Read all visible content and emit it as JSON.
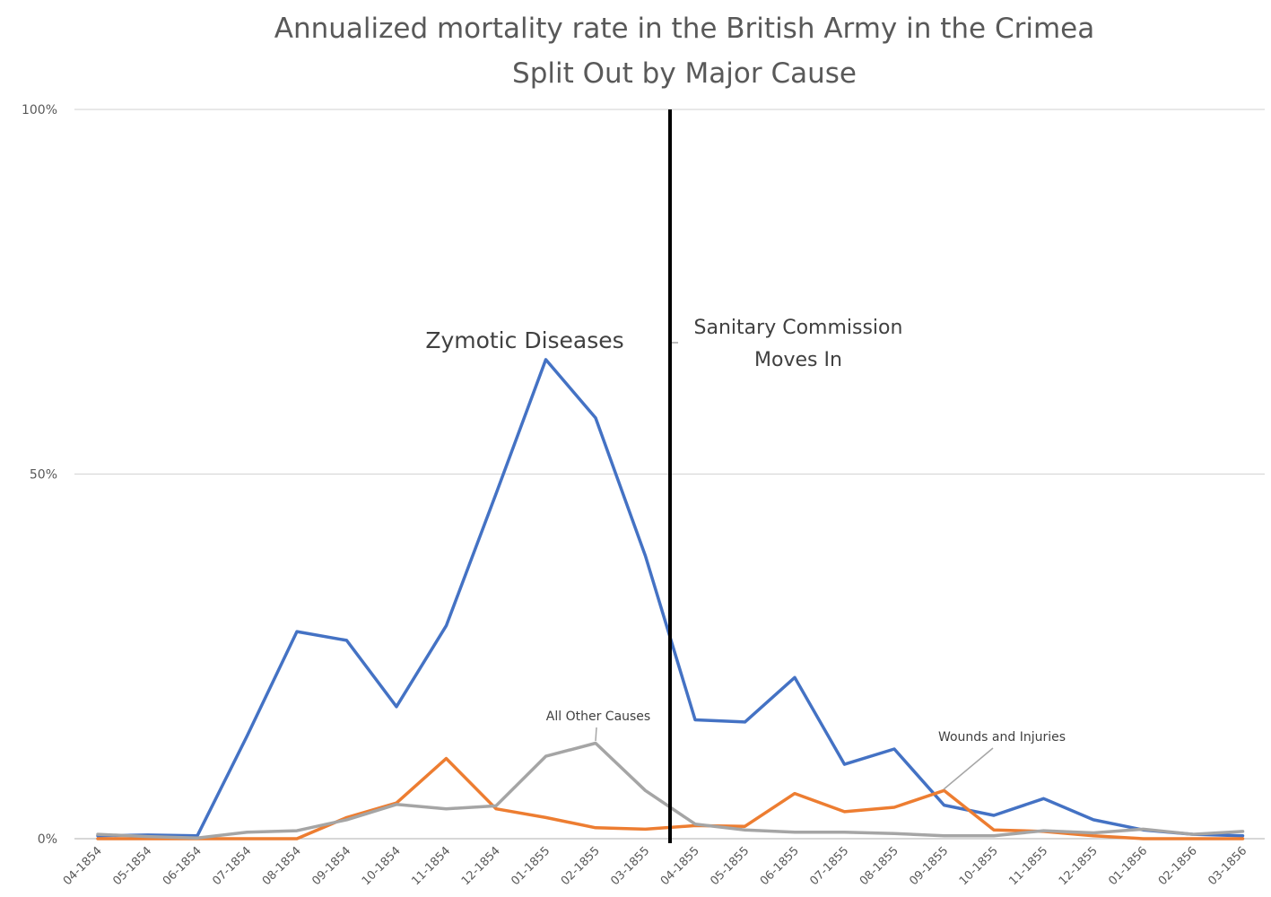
{
  "chart_data": {
    "type": "line",
    "title": "Annualized mortality rate in the British Army in the Crimea",
    "subtitle": "Split Out by Major Cause",
    "categories": [
      "04-1854",
      "05-1854",
      "06-1854",
      "07-1854",
      "08-1854",
      "09-1854",
      "10-1854",
      "11-1854",
      "12-1854",
      "01-1855",
      "02-1855",
      "03-1855",
      "04-1855",
      "05-1855",
      "06-1855",
      "07-1855",
      "08-1855",
      "09-1855",
      "10-1855",
      "11-1855",
      "12-1855",
      "01-1856",
      "02-1856",
      "03-1856"
    ],
    "yticks": [
      "0%",
      "50%",
      "100%"
    ],
    "ylim": [
      0,
      1
    ],
    "grid": true,
    "series": [
      {
        "key": "zymotic",
        "color": "#4472C4",
        "values": [
          0.004,
          0.005,
          0.004,
          0.141,
          0.284,
          0.272,
          0.181,
          0.292,
          0.473,
          0.657,
          0.577,
          0.388,
          0.163,
          0.16,
          0.221,
          0.102,
          0.123,
          0.046,
          0.032,
          0.055,
          0.026,
          0.012,
          0.006,
          0.004
        ]
      },
      {
        "key": "wounds",
        "color": "#ED7D31",
        "values": [
          0.0,
          0.0,
          0.0,
          0.0,
          0.0,
          0.029,
          0.049,
          0.11,
          0.041,
          0.029,
          0.015,
          0.013,
          0.018,
          0.017,
          0.062,
          0.037,
          0.043,
          0.066,
          0.012,
          0.01,
          0.004,
          0.0,
          0.0,
          0.0
        ]
      },
      {
        "key": "other",
        "color": "#A5A5A5",
        "values": [
          0.006,
          0.003,
          0.001,
          0.009,
          0.011,
          0.026,
          0.047,
          0.041,
          0.045,
          0.113,
          0.131,
          0.066,
          0.02,
          0.012,
          0.009,
          0.009,
          0.007,
          0.004,
          0.004,
          0.011,
          0.008,
          0.013,
          0.006,
          0.01
        ]
      }
    ],
    "annotations": {
      "zymotic": "Zymotic Diseases",
      "other": "All Other Causes",
      "wounds": "Wounds and Injuries",
      "event": "Sanitary Commission",
      "event_line2": "Moves In"
    }
  }
}
